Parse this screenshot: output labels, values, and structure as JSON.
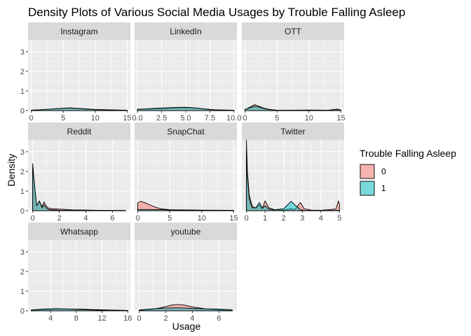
{
  "chart_data": {
    "type": "area",
    "title": "Density Plots of Various Social Media Usages by Trouble Falling Asleep",
    "xlabel": "Usage",
    "ylabel": "Density",
    "ylim": [
      0,
      3.6
    ],
    "yticks": [
      0,
      1,
      2,
      3
    ],
    "legend": {
      "title": "Trouble Falling Asleep",
      "placement": "right",
      "entries": [
        {
          "label": "0",
          "color": "#f8766d"
        },
        {
          "label": "1",
          "color": "#00bfc4"
        }
      ]
    },
    "facets": [
      {
        "name": "Instagram",
        "xlim": [
          -0.5,
          15.5
        ],
        "xticks": [
          0,
          5,
          10,
          15
        ],
        "xtick_labels": [
          "0",
          "5",
          "10",
          "15"
        ],
        "series": [
          {
            "name": "0",
            "x": [
              0,
              2,
              4,
              6,
              8,
              10,
              12,
              15
            ],
            "y": [
              0.02,
              0.05,
              0.1,
              0.14,
              0.1,
              0.06,
              0.04,
              0.02
            ]
          },
          {
            "name": "1",
            "x": [
              0,
              2,
              4,
              6,
              8,
              10,
              12,
              15
            ],
            "y": [
              0.02,
              0.05,
              0.1,
              0.13,
              0.09,
              0.05,
              0.03,
              0.01
            ]
          }
        ]
      },
      {
        "name": "LinkedIn",
        "xlim": [
          -0.3,
          10.3
        ],
        "xticks": [
          0,
          2.5,
          5,
          7.5,
          10
        ],
        "xtick_labels": [
          "0.0",
          "2.5",
          "5.0",
          "7.5",
          "10.0"
        ],
        "series": [
          {
            "name": "0",
            "x": [
              0,
              1,
              2,
              3,
              4,
              5,
              6,
              7,
              8,
              10
            ],
            "y": [
              0.06,
              0.08,
              0.1,
              0.12,
              0.14,
              0.15,
              0.13,
              0.08,
              0.04,
              0.02
            ]
          },
          {
            "name": "1",
            "x": [
              0,
              1,
              2,
              3,
              4,
              5,
              6,
              7,
              8,
              10
            ],
            "y": [
              0.07,
              0.09,
              0.12,
              0.14,
              0.16,
              0.17,
              0.14,
              0.08,
              0.03,
              0.01
            ]
          }
        ]
      },
      {
        "name": "OTT",
        "xlim": [
          -0.5,
          15.5
        ],
        "xticks": [
          0,
          5,
          10,
          15
        ],
        "xtick_labels": [
          "0",
          "5",
          "10",
          "15"
        ],
        "series": [
          {
            "name": "0",
            "x": [
              0,
              0.8,
              1.5,
              2.2,
              3,
              4,
              5,
              7,
              10,
              13,
              14.5,
              15
            ],
            "y": [
              0.05,
              0.18,
              0.3,
              0.22,
              0.12,
              0.05,
              0.02,
              0.02,
              0.03,
              0.02,
              0.08,
              0.02
            ]
          },
          {
            "name": "1",
            "x": [
              0,
              0.8,
              1.5,
              2.2,
              3,
              4,
              5,
              7,
              10,
              13,
              14.5,
              15
            ],
            "y": [
              0.06,
              0.15,
              0.22,
              0.18,
              0.1,
              0.04,
              0.02,
              0.02,
              0.02,
              0.02,
              0.06,
              0.02
            ]
          }
        ]
      },
      {
        "name": "Reddit",
        "xlim": [
          -0.35,
          7.35
        ],
        "xticks": [
          0,
          2,
          4,
          6
        ],
        "xtick_labels": [
          "0",
          "2",
          "4",
          "6"
        ],
        "series": [
          {
            "name": "0",
            "x": [
              0,
              0.1,
              0.3,
              0.5,
              0.7,
              0.85,
              1,
              1.2,
              1.5,
              2,
              3,
              5,
              7
            ],
            "y": [
              2.2,
              1.5,
              0.25,
              0.5,
              0.2,
              0.45,
              0.25,
              0.12,
              0.1,
              0.08,
              0.04,
              0.02,
              0.01
            ]
          },
          {
            "name": "1",
            "x": [
              0,
              0.1,
              0.3,
              0.5,
              0.7,
              0.85,
              1,
              1.2,
              1.5,
              2,
              3,
              5,
              7
            ],
            "y": [
              2.4,
              1.6,
              0.25,
              0.5,
              0.15,
              0.3,
              0.15,
              0.06,
              0.04,
              0.02,
              0.01,
              0.01,
              0.01
            ]
          }
        ]
      },
      {
        "name": "SnapChat",
        "xlim": [
          -0.5,
          15.5
        ],
        "xticks": [
          0,
          5,
          10,
          15
        ],
        "xtick_labels": [
          "0",
          "5",
          "10",
          "15"
        ],
        "series": [
          {
            "name": "0",
            "x": [
              0,
              0.5,
              1,
              2,
              3,
              4,
              5,
              7,
              10,
              15
            ],
            "y": [
              0.4,
              0.48,
              0.42,
              0.28,
              0.15,
              0.08,
              0.05,
              0.04,
              0.03,
              0.02
            ]
          },
          {
            "name": "1",
            "x": [
              0,
              0.5,
              1,
              2,
              3,
              4,
              5,
              7,
              10,
              15
            ],
            "y": [
              0.05,
              0.06,
              0.06,
              0.06,
              0.05,
              0.05,
              0.04,
              0.03,
              0.02,
              0.01
            ]
          }
        ]
      },
      {
        "name": "Twitter",
        "xlim": [
          -0.25,
          5.25
        ],
        "xticks": [
          0,
          1,
          2,
          3,
          4,
          5
        ],
        "xtick_labels": [
          "0",
          "1",
          "2",
          "3",
          "4",
          "5"
        ],
        "series": [
          {
            "name": "0",
            "x": [
              0,
              0.05,
              0.15,
              0.3,
              0.5,
              0.7,
              0.85,
              1,
              1.2,
              1.5,
              2,
              2.4,
              2.6,
              2.9,
              3.1,
              3.5,
              4,
              4.8,
              4.95,
              5
            ],
            "y": [
              3.6,
              2.0,
              0.8,
              0.25,
              0.12,
              0.3,
              0.1,
              0.5,
              0.15,
              0.05,
              0.03,
              0.1,
              0.05,
              0.42,
              0.1,
              0.03,
              0.02,
              0.08,
              0.5,
              0.3
            ]
          },
          {
            "name": "1",
            "x": [
              0,
              0.05,
              0.15,
              0.3,
              0.5,
              0.7,
              0.85,
              1,
              1.2,
              1.5,
              2,
              2.4,
              2.6,
              2.9,
              3.1,
              3.5,
              4,
              4.8,
              4.95,
              5
            ],
            "y": [
              3.0,
              1.8,
              0.6,
              0.15,
              0.15,
              0.42,
              0.12,
              0.25,
              0.08,
              0.04,
              0.1,
              0.48,
              0.3,
              0.05,
              0.02,
              0.01,
              0.01,
              0.01,
              0.02,
              0.02
            ]
          }
        ]
      },
      {
        "name": "Whatsapp",
        "xlim": [
          0.5,
          16.4
        ],
        "xticks": [
          4,
          8,
          12,
          16
        ],
        "xtick_labels": [
          "4",
          "8",
          "12",
          "16"
        ],
        "series": [
          {
            "name": "0",
            "x": [
              1,
              3,
              5,
              7,
              9,
              11,
              13,
              15,
              16
            ],
            "y": [
              0.03,
              0.07,
              0.09,
              0.09,
              0.08,
              0.06,
              0.04,
              0.03,
              0.02
            ]
          },
          {
            "name": "1",
            "x": [
              1,
              3,
              5,
              7,
              9,
              11,
              13,
              15,
              16
            ],
            "y": [
              0.04,
              0.09,
              0.11,
              0.09,
              0.06,
              0.04,
              0.03,
              0.02,
              0.01
            ]
          }
        ]
      },
      {
        "name": "youtube",
        "xlim": [
          -0.35,
          7.35
        ],
        "xticks": [
          0,
          2,
          4,
          6
        ],
        "xtick_labels": [
          "0",
          "2",
          "4",
          "6"
        ],
        "series": [
          {
            "name": "0",
            "x": [
              0,
              0.5,
              1,
              1.5,
              2,
              2.5,
              3,
              3.5,
              4,
              5,
              6,
              6.5,
              7
            ],
            "y": [
              0.02,
              0.05,
              0.08,
              0.14,
              0.22,
              0.3,
              0.32,
              0.28,
              0.2,
              0.1,
              0.05,
              0.03,
              0.02
            ]
          },
          {
            "name": "1",
            "x": [
              0,
              0.5,
              1,
              1.5,
              2,
              2.5,
              3,
              3.5,
              4,
              5,
              6,
              6.5,
              7
            ],
            "y": [
              0.04,
              0.07,
              0.1,
              0.12,
              0.14,
              0.15,
              0.15,
              0.14,
              0.12,
              0.1,
              0.08,
              0.07,
              0.05
            ]
          }
        ]
      }
    ]
  }
}
